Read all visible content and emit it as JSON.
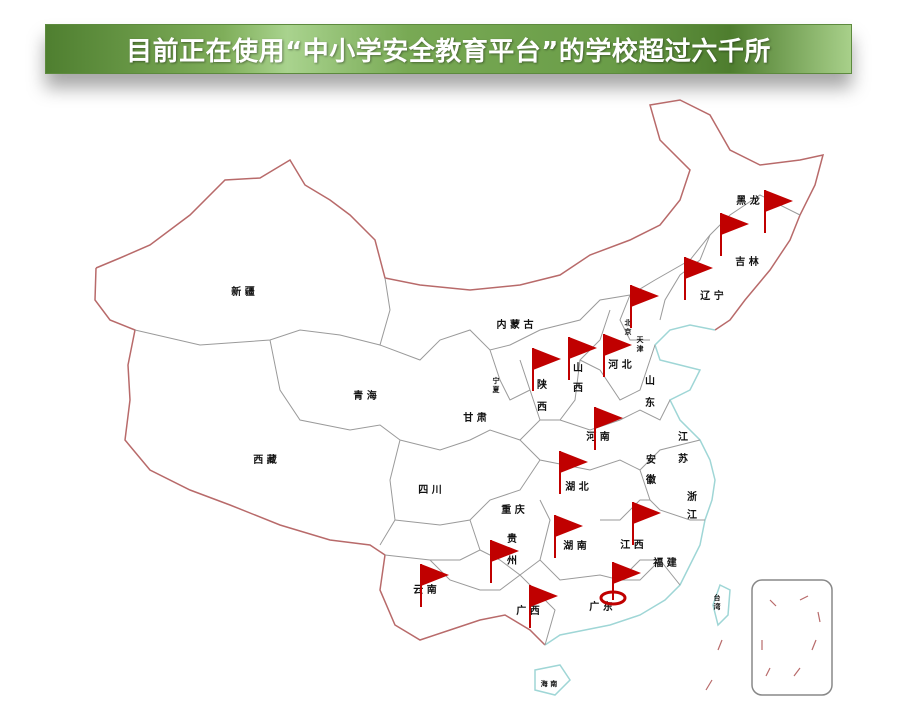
{
  "title": "目前正在使用“中小学安全教育平台”的学校超过六千所",
  "colors": {
    "border": "#b86a6a",
    "province_line": "#9a9a9a",
    "coast": "#9fd6d6",
    "flag": "#c00000",
    "banner": "#6a9d48"
  },
  "provinces": [
    {
      "id": "heilongjiang",
      "label": "黑 龙",
      "flag": true
    },
    {
      "id": "jilin",
      "label": "吉 林",
      "flag": true
    },
    {
      "id": "liaoning",
      "label": "辽 宁",
      "flag": true
    },
    {
      "id": "beijing",
      "label": "北京",
      "flag": true
    },
    {
      "id": "tianjin",
      "label": "天津",
      "flag": false
    },
    {
      "id": "hebei",
      "label": "河 北",
      "flag": true
    },
    {
      "id": "shandong",
      "label": "山东",
      "flag": false
    },
    {
      "id": "neimenggu",
      "label": "内 蒙 古",
      "flag": false
    },
    {
      "id": "xinjiang",
      "label": "新 疆",
      "flag": false
    },
    {
      "id": "qinghai",
      "label": "青 海",
      "flag": false
    },
    {
      "id": "xizang",
      "label": "西 藏",
      "flag": false
    },
    {
      "id": "gansu",
      "label": "甘 肃",
      "flag": false
    },
    {
      "id": "ningxia",
      "label": "宁夏",
      "flag": false
    },
    {
      "id": "shaanxi",
      "label": "陕西",
      "flag": true
    },
    {
      "id": "shanxi",
      "label": "山西",
      "flag": true
    },
    {
      "id": "henan",
      "label": "河 南",
      "flag": true
    },
    {
      "id": "jiangsu",
      "label": "江苏",
      "flag": false
    },
    {
      "id": "anhui",
      "label": "安徽",
      "flag": false
    },
    {
      "id": "hubei",
      "label": "湖 北",
      "flag": true
    },
    {
      "id": "sichuan",
      "label": "四 川",
      "flag": false
    },
    {
      "id": "chongqing",
      "label": "重 庆",
      "flag": false
    },
    {
      "id": "zhejiang",
      "label": "浙江",
      "flag": false
    },
    {
      "id": "guizhou",
      "label": "贵州",
      "flag": true
    },
    {
      "id": "hunan",
      "label": "湖 南",
      "flag": true
    },
    {
      "id": "jiangxi",
      "label": "江 西",
      "flag": true
    },
    {
      "id": "fujian",
      "label": "福 建",
      "flag": false
    },
    {
      "id": "yunnan",
      "label": "云 南",
      "flag": true
    },
    {
      "id": "guangxi",
      "label": "广 西",
      "flag": true
    },
    {
      "id": "guangdong",
      "label": "广 东",
      "flag": true,
      "highlighted": true
    },
    {
      "id": "taiwan",
      "label": "台湾",
      "flag": false
    },
    {
      "id": "hainan",
      "label": "海 南",
      "flag": false
    }
  ]
}
